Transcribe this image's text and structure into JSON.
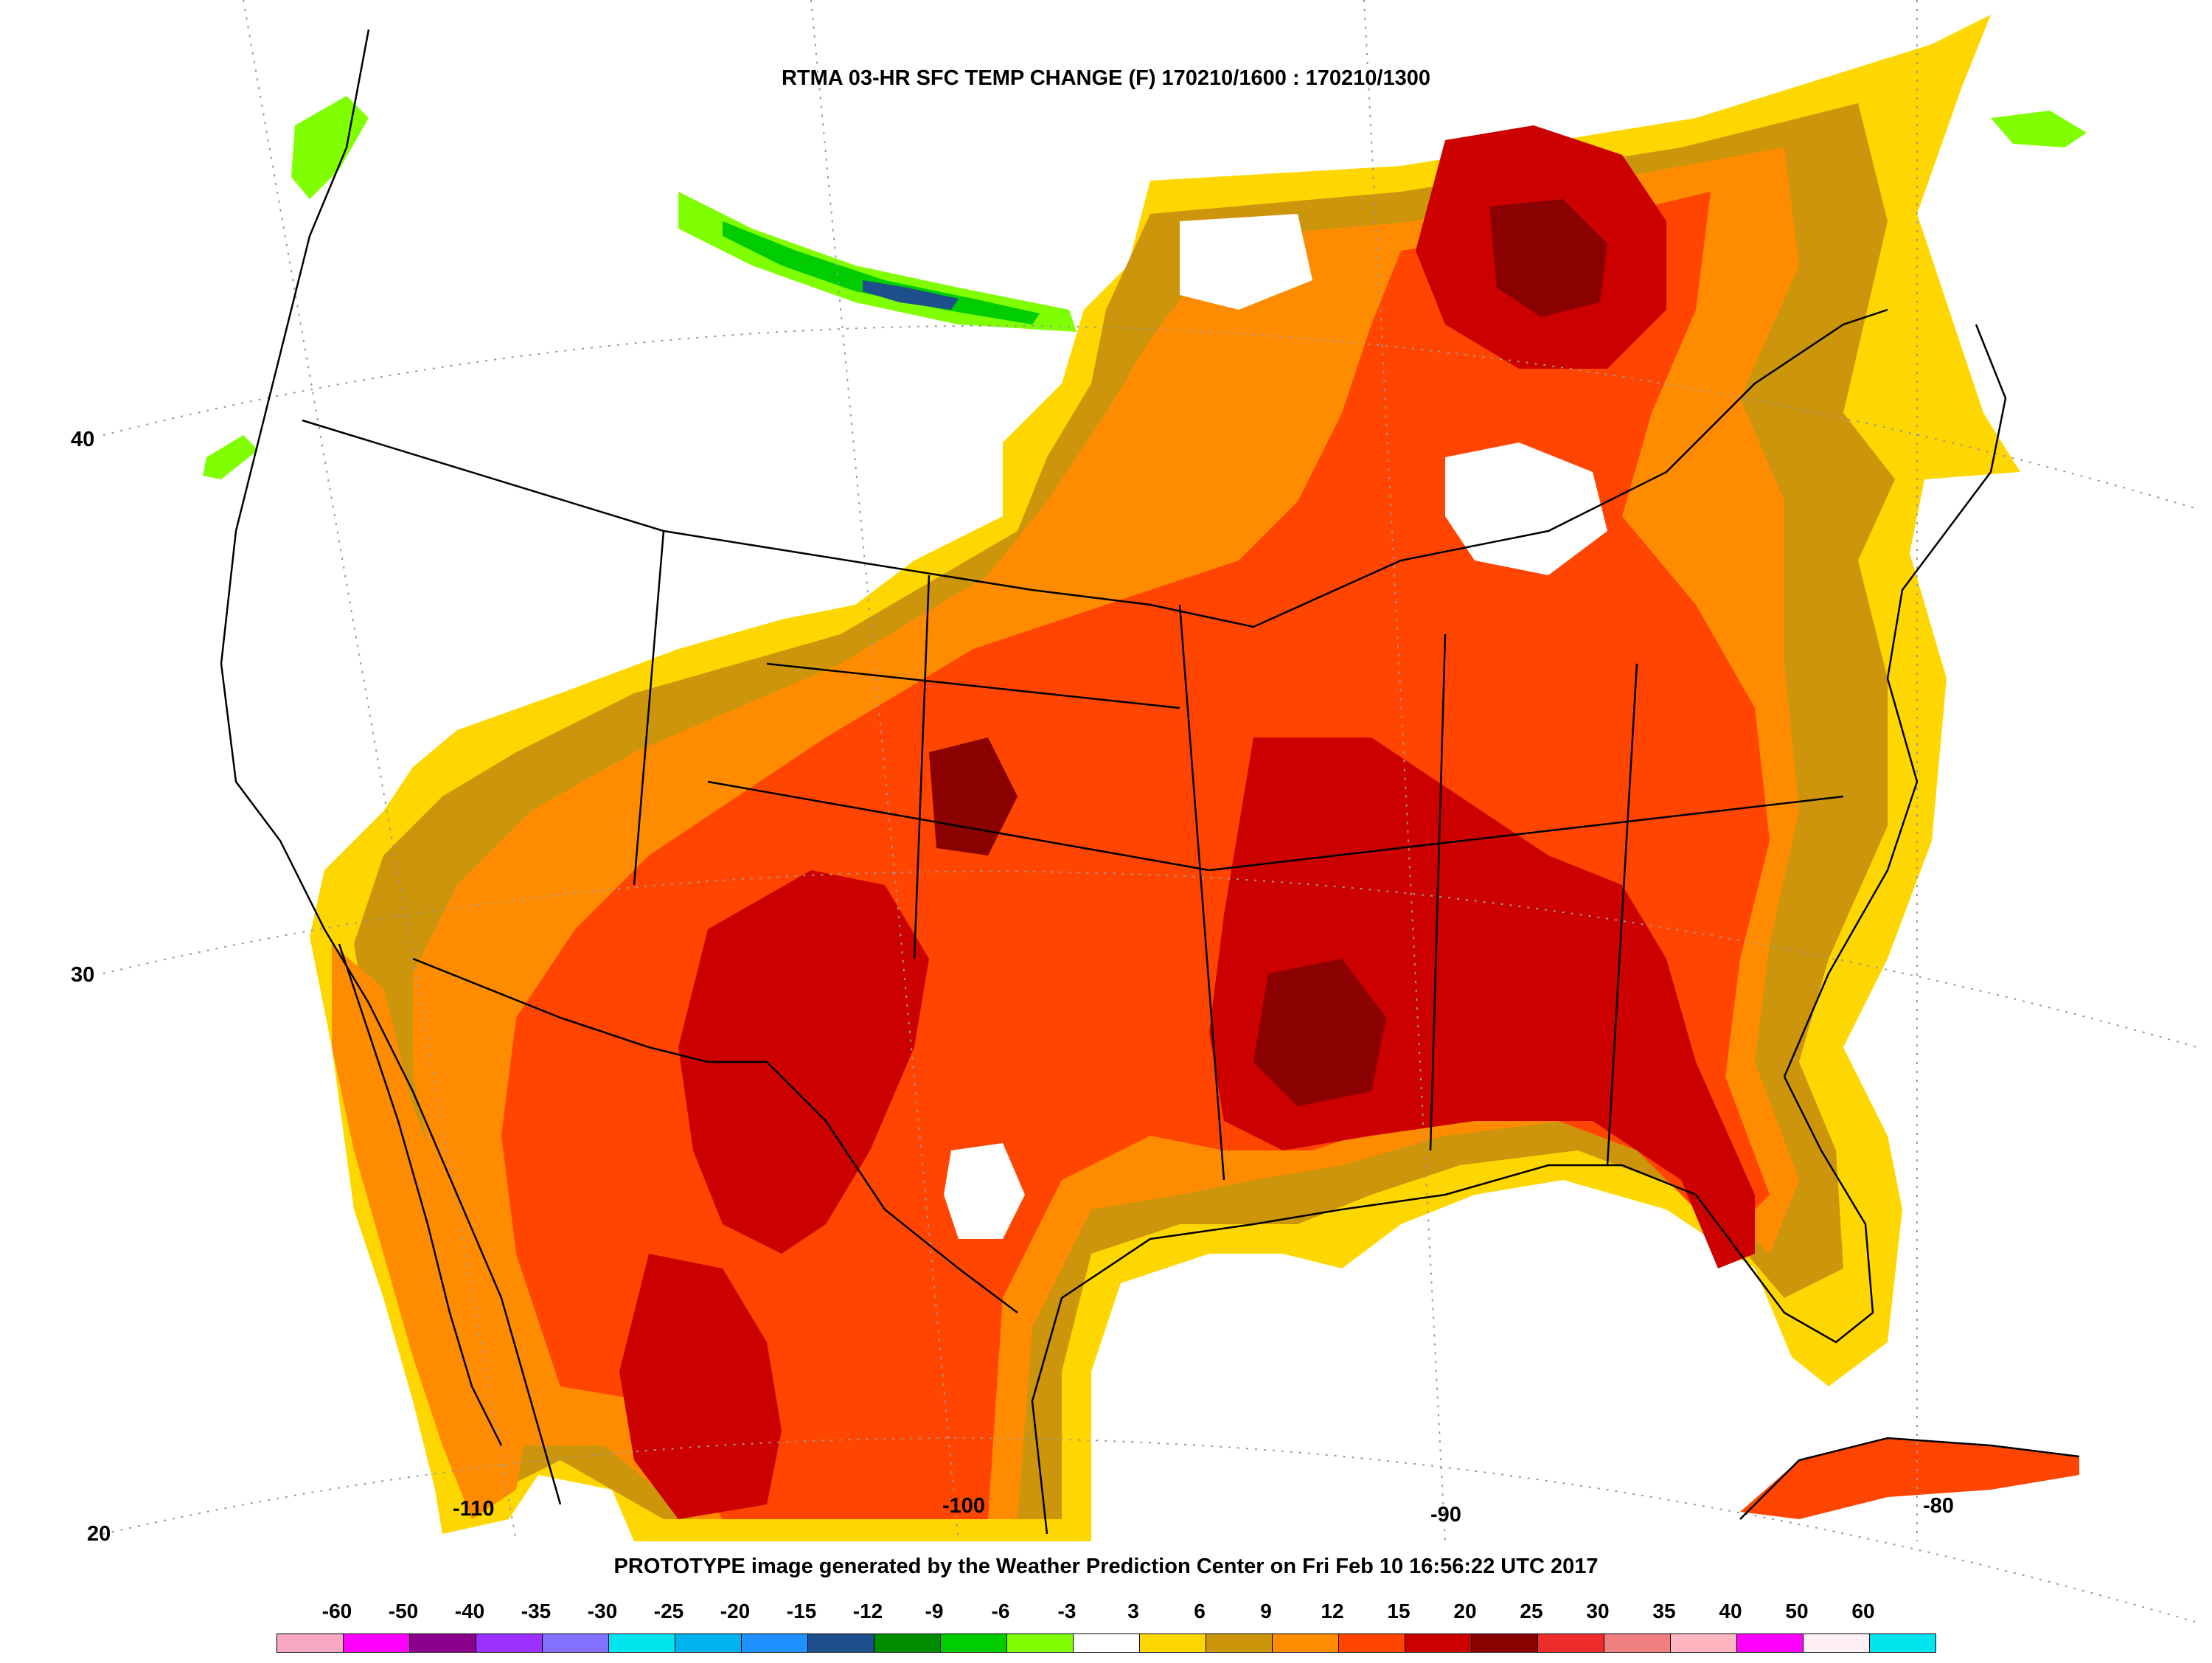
{
  "title": "RTMA 03-HR SFC TEMP CHANGE (F) 170210/1600 : 170210/1300",
  "footer": "PROTOTYPE image generated by the Weather Prediction Center on Fri Feb 10 16:56:22 UTC 2017",
  "latitude_labels": [
    "40",
    "30",
    "20"
  ],
  "longitude_labels": [
    "-110",
    "-100",
    "-90",
    "-80"
  ],
  "legend": {
    "labels": [
      "-60",
      "-50",
      "-40",
      "-35",
      "-30",
      "-25",
      "-20",
      "-15",
      "-12",
      "-9",
      "-6",
      "-3",
      "3",
      "6",
      "9",
      "12",
      "15",
      "20",
      "25",
      "30",
      "35",
      "40",
      "50",
      "60"
    ],
    "colors": [
      "#f8a8c0",
      "#ff00ff",
      "#8b008b",
      "#9b30ff",
      "#8470ff",
      "#00e5ee",
      "#00b2ee",
      "#1e90ff",
      "#1c4f8c",
      "#008b00",
      "#00cd00",
      "#7fff00",
      "#ffffff",
      "#ffd700",
      "#cd950c",
      "#ff8c00",
      "#ff4500",
      "#cd0000",
      "#8b0000",
      "#ee2c2c",
      "#f08080",
      "#ffb6c1",
      "#ff00ff",
      "#fff0f5",
      "#00e5ee"
    ]
  },
  "map_colors": {
    "background": "#ffffff",
    "warming_3_6": "#ffd700",
    "warming_6_9": "#cd950c",
    "warming_9_12": "#ff8c00",
    "warming_12_15": "#ff4500",
    "warming_15_20": "#cd0000",
    "warming_20_25": "#8b0000",
    "cooling_3_6": "#7fff00",
    "cooling_6_9": "#00cd00",
    "cooling_9_12": "#008b00",
    "cooling_12_15": "#1c4f8c",
    "boundaries": "#000000",
    "graticule": "#9a9a9a"
  }
}
